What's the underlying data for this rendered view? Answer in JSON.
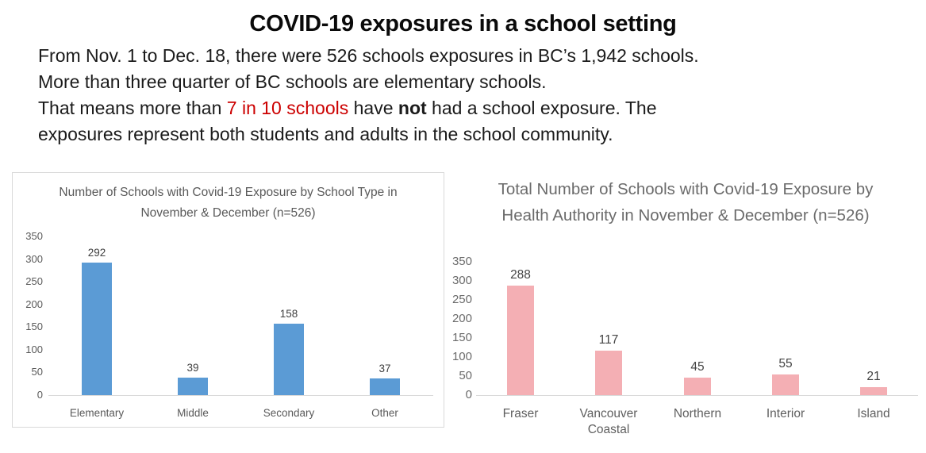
{
  "page": {
    "title": "COVID-19 exposures in a school setting",
    "intro": {
      "line1": "From Nov. 1 to Dec. 18, there were 526 schools exposures in BC’s 1,942 schools.",
      "line2": "More than three quarter of BC schools are elementary schools.",
      "line3_before": "That means more than ",
      "line3_red": "7 in 10 schools",
      "line3_mid": " have ",
      "line3_bold": "not",
      "line3_after": " had a school exposure. The",
      "line4": "exposures represent both students and adults in the school community."
    }
  },
  "colors": {
    "accent_red": "#CC0000",
    "bar_blue": "#5B9BD5",
    "bar_pink": "#F4AFB4",
    "axis_gray": "#D9D9D9"
  },
  "chart_data": [
    {
      "id": "school-type",
      "type": "bar",
      "title": "Number of Schools with Covid-19 Exposure by School Type in November & December (n=526)",
      "categories": [
        "Elementary",
        "Middle",
        "Secondary",
        "Other"
      ],
      "values": [
        292,
        39,
        158,
        37
      ],
      "xlabel": "",
      "ylabel": "",
      "ylim": [
        0,
        350
      ],
      "ytick_step": 50,
      "bar_color": "#5B9BD5",
      "grid": false,
      "legend": "none"
    },
    {
      "id": "health-authority",
      "type": "bar",
      "title": "Total Number of Schools with Covid-19 Exposure by Health Authority in November & December (n=526)",
      "categories": [
        "Fraser",
        "Vancouver Coastal",
        "Northern",
        "Interior",
        "Island"
      ],
      "values": [
        288,
        117,
        45,
        55,
        21
      ],
      "xlabel": "",
      "ylabel": "",
      "ylim": [
        0,
        350
      ],
      "ytick_step": 50,
      "bar_color": "#F4AFB4",
      "grid": false,
      "legend": "none"
    }
  ]
}
